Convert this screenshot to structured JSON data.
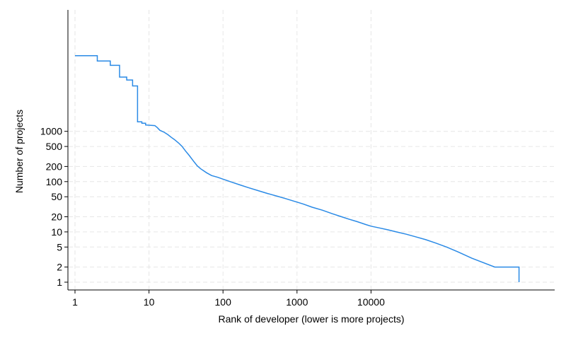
{
  "chart_data": {
    "type": "line",
    "title": "",
    "xlabel": "Rank of developer (lower is more projects)",
    "ylabel": "Number of projects",
    "x_scale": "log",
    "y_scale": "log",
    "x_ticks": [
      "1",
      "10",
      "100",
      "1000",
      "10000"
    ],
    "y_ticks": [
      "1",
      "2",
      "5",
      "10",
      "20",
      "50",
      "100",
      "200",
      "500",
      "1000"
    ],
    "grid": true,
    "line_color": "#2a8ae6",
    "series": [
      {
        "values": [
          [
            1,
            32000
          ],
          [
            2,
            32000
          ],
          [
            2,
            25000
          ],
          [
            3,
            25000
          ],
          [
            3,
            20500
          ],
          [
            4,
            20500
          ],
          [
            4,
            12000
          ],
          [
            5,
            12000
          ],
          [
            5,
            10500
          ],
          [
            6,
            10500
          ],
          [
            6,
            8000
          ],
          [
            7,
            8000
          ],
          [
            7,
            1550
          ],
          [
            8,
            1550
          ],
          [
            8,
            1450
          ],
          [
            9,
            1450
          ],
          [
            9,
            1340
          ],
          [
            12,
            1300
          ],
          [
            13,
            1180
          ],
          [
            14,
            1050
          ],
          [
            16,
            960
          ],
          [
            18,
            860
          ],
          [
            20,
            760
          ],
          [
            22,
            690
          ],
          [
            25,
            590
          ],
          [
            28,
            500
          ],
          [
            31,
            410
          ],
          [
            35,
            330
          ],
          [
            40,
            255
          ],
          [
            45,
            205
          ],
          [
            50,
            180
          ],
          [
            60,
            150
          ],
          [
            70,
            132
          ],
          [
            85,
            122
          ],
          [
            100,
            112
          ],
          [
            130,
            98
          ],
          [
            170,
            86
          ],
          [
            220,
            76
          ],
          [
            300,
            66
          ],
          [
            400,
            58
          ],
          [
            550,
            51
          ],
          [
            700,
            46
          ],
          [
            900,
            41
          ],
          [
            1200,
            36
          ],
          [
            1600,
            31
          ],
          [
            2200,
            27
          ],
          [
            3000,
            23
          ],
          [
            4000,
            20
          ],
          [
            5000,
            18
          ],
          [
            6500,
            16
          ],
          [
            8500,
            14
          ],
          [
            10000,
            13
          ],
          [
            13000,
            12
          ],
          [
            17000,
            11
          ],
          [
            22000,
            10
          ],
          [
            30000,
            9
          ],
          [
            40000,
            8
          ],
          [
            55000,
            7
          ],
          [
            75000,
            6
          ],
          [
            105000,
            5
          ],
          [
            150000,
            4
          ],
          [
            230000,
            3
          ],
          [
            470000,
            2
          ],
          [
            1000000,
            2
          ],
          [
            1000000,
            1
          ]
        ]
      }
    ]
  }
}
